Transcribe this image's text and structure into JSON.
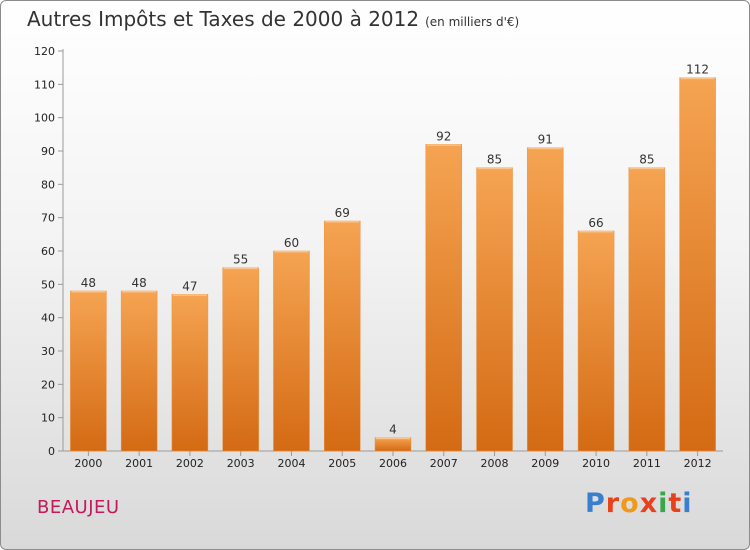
{
  "title": "Autres Impôts et Taxes de 2000 à 2012",
  "subtitle": "(en milliers d'€)",
  "commune": "BEAUJEU",
  "logo": {
    "text": "Proxiti",
    "colors": [
      "#3a7fcf",
      "#e8421c",
      "#f09a1a",
      "#e8421c",
      "#3aa64a",
      "#e8421c",
      "#3a7fcf"
    ]
  },
  "colors": {
    "bar_top": "#f5a452",
    "bar_bottom": "#d46a14",
    "commune": "#c4195a"
  },
  "chart_data": {
    "type": "bar",
    "categories": [
      "2000",
      "2001",
      "2002",
      "2003",
      "2004",
      "2005",
      "2006",
      "2007",
      "2008",
      "2009",
      "2010",
      "2011",
      "2012"
    ],
    "values": [
      48,
      48,
      47,
      55,
      60,
      69,
      4,
      92,
      85,
      91,
      66,
      85,
      112
    ],
    "ylim": [
      0,
      120
    ],
    "yticks": [
      0,
      10,
      20,
      30,
      40,
      50,
      60,
      70,
      80,
      90,
      100,
      110,
      120
    ],
    "grid": false,
    "data_labels": true
  }
}
